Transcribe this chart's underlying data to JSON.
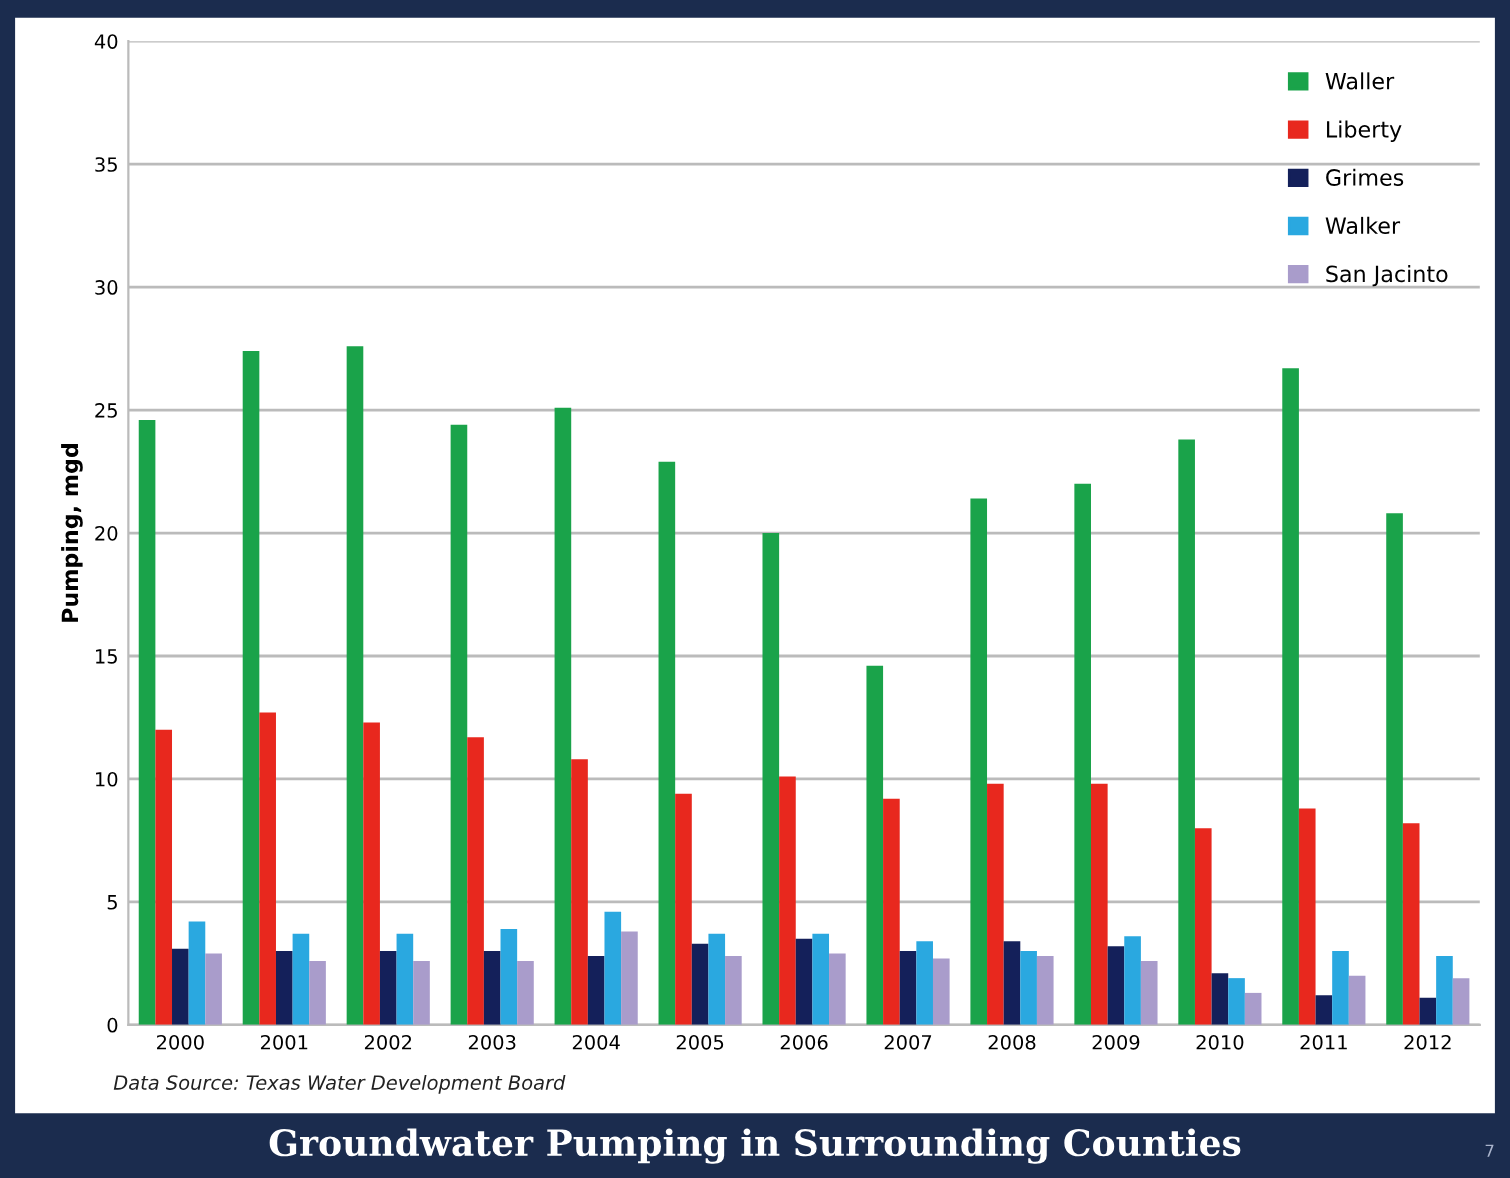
{
  "chart_data": {
    "type": "bar",
    "title": "Groundwater Pumping in Surrounding Counties",
    "ylabel": "Pumping, mgd",
    "annotations": [
      "Data Source: Texas Water Development Board",
      "7"
    ],
    "categories": [
      "2000",
      "2001",
      "2002",
      "2003",
      "2004",
      "2005",
      "2006",
      "2007",
      "2008",
      "2009",
      "2010",
      "2011",
      "2012"
    ],
    "series": [
      {
        "name": "Waller",
        "color": "#1aa34a",
        "values": [
          24.6,
          27.4,
          27.6,
          24.4,
          25.1,
          22.9,
          20.0,
          14.6,
          21.4,
          22.0,
          23.8,
          26.7,
          20.8
        ]
      },
      {
        "name": "Liberty",
        "color": "#e8281e",
        "values": [
          12.0,
          12.7,
          12.3,
          11.7,
          10.8,
          9.4,
          10.1,
          9.2,
          9.8,
          9.8,
          8.0,
          8.8,
          8.2
        ]
      },
      {
        "name": "Grimes",
        "color": "#14205a",
        "values": [
          3.1,
          3.0,
          3.0,
          3.0,
          2.8,
          3.3,
          3.5,
          3.0,
          3.4,
          3.2,
          2.1,
          1.2,
          1.1
        ]
      },
      {
        "name": "Walker",
        "color": "#2aa8e0",
        "values": [
          4.2,
          3.7,
          3.7,
          3.9,
          4.6,
          3.7,
          3.7,
          3.4,
          3.0,
          3.6,
          1.9,
          3.0,
          2.8
        ]
      },
      {
        "name": "San Jacinto",
        "color": "#a99ccb",
        "values": [
          2.9,
          2.6,
          2.6,
          2.6,
          3.8,
          2.8,
          2.9,
          2.7,
          2.8,
          2.6,
          1.3,
          2.0,
          1.9
        ]
      }
    ],
    "ylim": [
      0,
      40
    ],
    "yticks": [
      0,
      5,
      10,
      15,
      20,
      25,
      30,
      35,
      40
    ],
    "grid": "y",
    "legend": "top right"
  }
}
